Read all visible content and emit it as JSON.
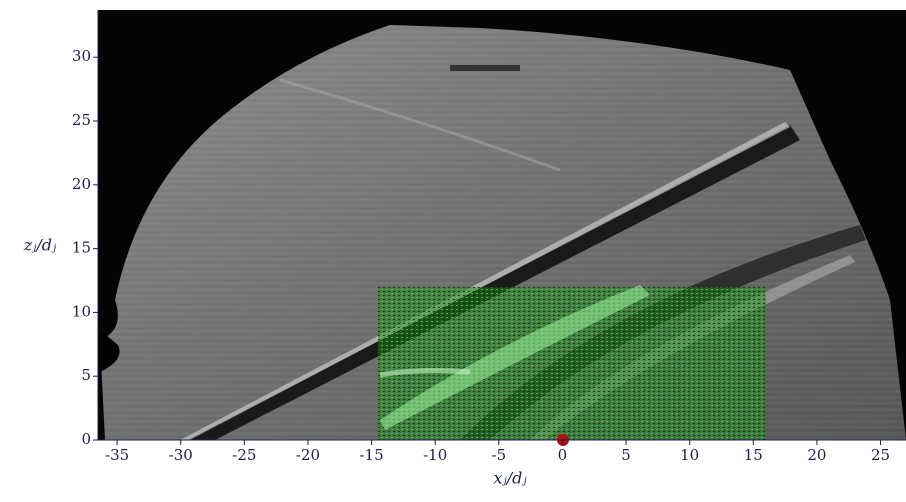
{
  "chart_data": {
    "type": "image",
    "x_label": "xⱼ/dⱼ",
    "y_label": "zⱼ/dⱼ",
    "xlim": [
      -36.5,
      27
    ],
    "ylim": [
      0,
      33.7
    ],
    "xticks": [
      -35,
      -30,
      -25,
      -20,
      -15,
      -10,
      -5,
      0,
      5,
      10,
      15,
      20,
      25
    ],
    "yticks": [
      0,
      5,
      10,
      15,
      20,
      25,
      30
    ]
  }
}
